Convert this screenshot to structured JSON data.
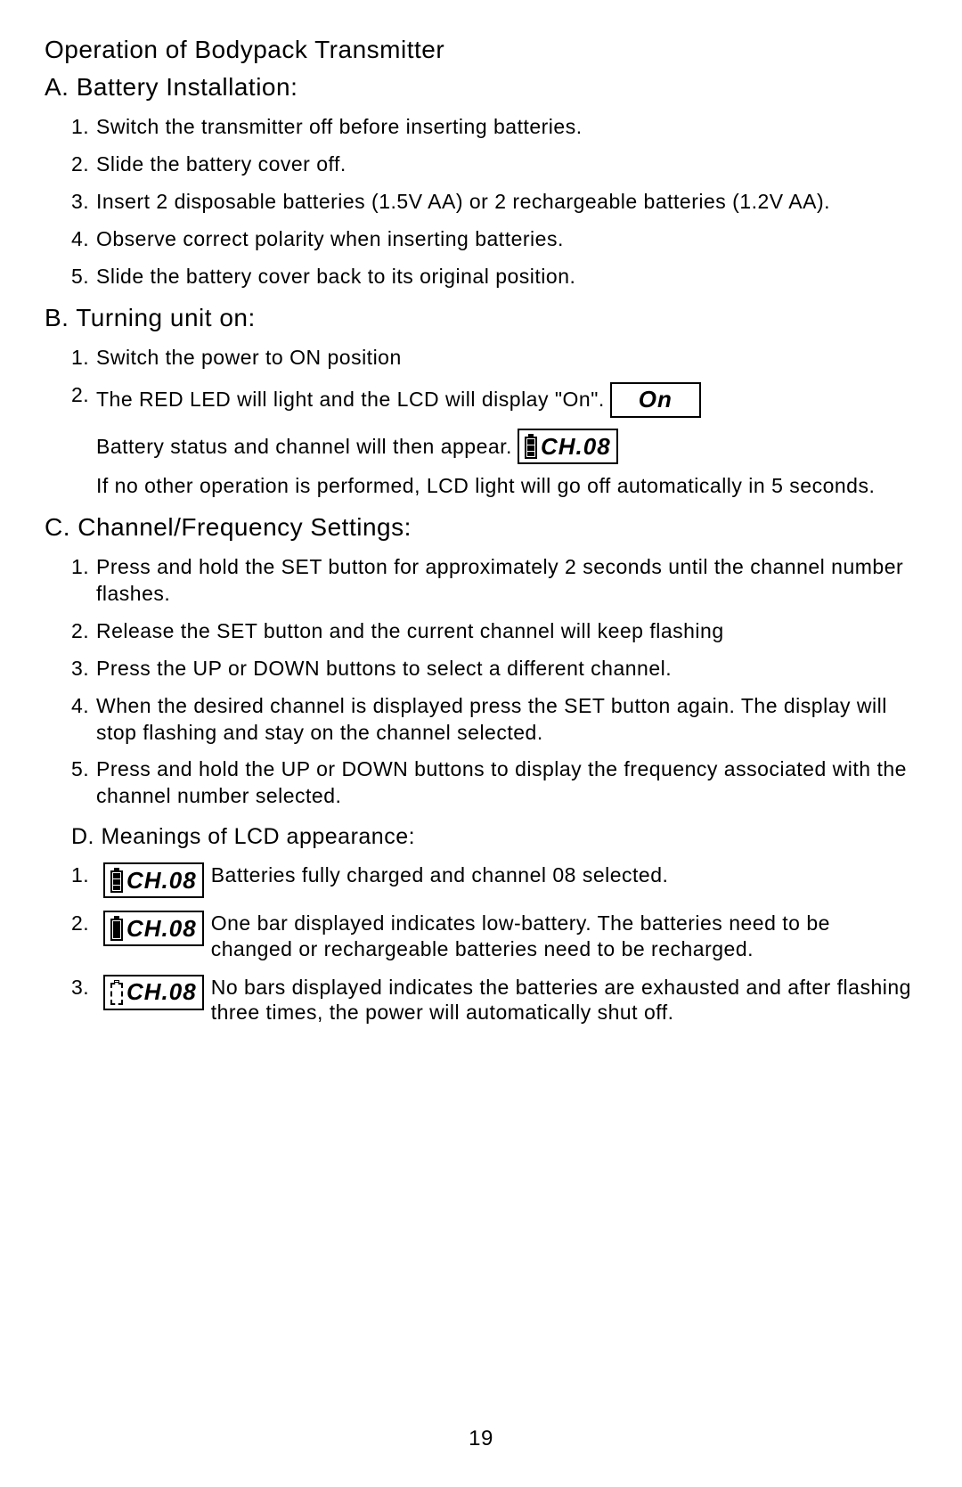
{
  "title": "Operation of Bodypack Transmitter",
  "sectionA": {
    "heading": "A. Battery Installation:",
    "items": [
      "Switch the transmitter off before inserting batteries.",
      "Slide the battery cover off.",
      "Insert 2 disposable batteries (1.5V AA) or 2 rechargeable batteries (1.2V AA).",
      "Observe correct polarity when inserting batteries.",
      "Slide the battery cover back to its original position."
    ]
  },
  "sectionB": {
    "heading": "B. Turning unit on:",
    "item1": "Switch the power to ON position",
    "item2_pre": "The RED LED will light and  the LCD will display \"On\".",
    "on_lcd": "On",
    "cont_pre": "Battery status and  channel will then  appear.",
    "ch_lcd": "CH.08",
    "cont_after": "If no other operation is performed, LCD light will go off automatically in 5 seconds."
  },
  "sectionC": {
    "heading": "C. Channel/Frequency Settings:",
    "items": [
      "Press and hold the SET button for approximately 2 seconds until the channel number flashes.",
      "Release the SET button and the current channel will keep flashing",
      "Press the UP or DOWN buttons to select a different channel.",
      "When the desired channel is displayed press the SET button again. The display will stop flashing and stay on the channel selected.",
      "Press and hold the UP or DOWN buttons to display the frequency associated with the channel number selected."
    ]
  },
  "sectionD": {
    "heading": "D. Meanings of LCD appearance:",
    "lcd_text": "CH.08",
    "d1": "Batteries fully charged and channel 08 selected.",
    "d2": "One bar displayed indicates low-battery. The batteries need to be changed or rechargeable batteries need to be recharged.",
    "d3": "No bars displayed indicates the batteries are exhausted and after flashing three times, the power will automatically shut off."
  },
  "pageNumber": "19"
}
